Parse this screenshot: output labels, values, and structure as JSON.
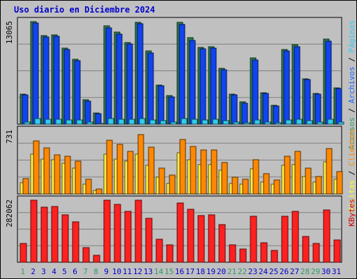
{
  "title": "Uso diario en Diciembre 2024",
  "chart_data": [
    {
      "type": "bar",
      "ytick_label": "13065",
      "ylim": [
        0,
        13065
      ],
      "grid": true,
      "right_labels": [
        {
          "text": "Accesos",
          "color": "#339966"
        },
        {
          "text": " / ",
          "color": "#000000"
        },
        {
          "text": "Archivos",
          "color": "#2266ff"
        },
        {
          "text": " / ",
          "color": "#000000"
        },
        {
          "text": "Páginas",
          "color": "#33ccee"
        }
      ],
      "series": [
        {
          "name": "Accesos",
          "color": "#2e7d4f",
          "values": [
            3800,
            13065,
            11300,
            11400,
            9700,
            8300,
            3100,
            1400,
            12500,
            11700,
            10400,
            13000,
            9300,
            5000,
            3600,
            13000,
            11000,
            9800,
            9900,
            7100,
            3800,
            2800,
            8400,
            4000,
            2400,
            9500,
            10100,
            5800,
            3900,
            10800,
            4600
          ]
        },
        {
          "name": "Archivos",
          "color": "#1144ee",
          "values": [
            3700,
            12900,
            11100,
            11200,
            9500,
            8100,
            2900,
            1300,
            12300,
            11500,
            10200,
            12800,
            9100,
            4900,
            3500,
            12700,
            10700,
            9600,
            9700,
            6900,
            3700,
            2700,
            8200,
            3900,
            2300,
            9300,
            9900,
            5700,
            3800,
            10600,
            4500
          ]
        },
        {
          "name": "Páginas",
          "color": "#33ccee",
          "values": [
            300,
            700,
            600,
            600,
            500,
            500,
            300,
            100,
            700,
            600,
            600,
            700,
            500,
            400,
            300,
            700,
            600,
            500,
            600,
            400,
            300,
            200,
            500,
            300,
            200,
            500,
            600,
            400,
            300,
            600,
            300
          ]
        }
      ]
    },
    {
      "type": "bar",
      "ytick_label": "731",
      "ylim": [
        0,
        731
      ],
      "grid": true,
      "right_labels": [
        {
          "text": "Visitas",
          "color": "#ffff33"
        },
        {
          "text": " / ",
          "color": "#000000"
        },
        {
          "text": "Clientes",
          "color": "#ff8800"
        }
      ],
      "series": [
        {
          "name": "Visitas",
          "color": "#ffee44",
          "values": [
            130,
            460,
            400,
            390,
            350,
            300,
            110,
            40,
            460,
            400,
            380,
            460,
            330,
            190,
            120,
            470,
            390,
            340,
            340,
            270,
            120,
            110,
            290,
            140,
            110,
            330,
            340,
            200,
            140,
            370,
            170
          ]
        },
        {
          "name": "Clientes",
          "color": "#ff8800",
          "values": [
            180,
            610,
            530,
            450,
            430,
            380,
            170,
            60,
            620,
            570,
            490,
            680,
            540,
            300,
            220,
            630,
            550,
            510,
            510,
            360,
            190,
            170,
            390,
            230,
            160,
            430,
            490,
            300,
            200,
            520,
            260
          ]
        }
      ]
    },
    {
      "type": "bar",
      "ytick_label": "282062",
      "ylim": [
        0,
        282062
      ],
      "grid": true,
      "right_labels": [
        {
          "text": "KBytes",
          "color": "#cc0000"
        }
      ],
      "series": [
        {
          "name": "KBytes",
          "color": "#ff2020",
          "values": [
            85000,
            282062,
            250000,
            252000,
            215000,
            183000,
            68000,
            33000,
            282000,
            262000,
            230000,
            282000,
            199000,
            105000,
            78000,
            270000,
            240000,
            213000,
            217000,
            171000,
            78000,
            60000,
            210000,
            88000,
            54000,
            209000,
            230000,
            117000,
            86000,
            237000,
            101000
          ]
        }
      ]
    }
  ],
  "days": [
    {
      "label": "1",
      "weekend": true
    },
    {
      "label": "2",
      "weekend": false
    },
    {
      "label": "3",
      "weekend": false
    },
    {
      "label": "4",
      "weekend": false
    },
    {
      "label": "5",
      "weekend": false
    },
    {
      "label": "6",
      "weekend": false
    },
    {
      "label": "7",
      "weekend": true
    },
    {
      "label": "8",
      "weekend": true
    },
    {
      "label": "9",
      "weekend": false
    },
    {
      "label": "10",
      "weekend": false
    },
    {
      "label": "11",
      "weekend": false
    },
    {
      "label": "12",
      "weekend": false
    },
    {
      "label": "13",
      "weekend": false
    },
    {
      "label": "14",
      "weekend": true
    },
    {
      "label": "15",
      "weekend": true
    },
    {
      "label": "16",
      "weekend": false
    },
    {
      "label": "17",
      "weekend": false
    },
    {
      "label": "18",
      "weekend": false
    },
    {
      "label": "19",
      "weekend": false
    },
    {
      "label": "20",
      "weekend": false
    },
    {
      "label": "21",
      "weekend": true
    },
    {
      "label": "22",
      "weekend": true
    },
    {
      "label": "23",
      "weekend": false
    },
    {
      "label": "24",
      "weekend": false
    },
    {
      "label": "25",
      "weekend": false
    },
    {
      "label": "26",
      "weekend": false
    },
    {
      "label": "27",
      "weekend": false
    },
    {
      "label": "28",
      "weekend": true
    },
    {
      "label": "29",
      "weekend": true
    },
    {
      "label": "30",
      "weekend": false
    },
    {
      "label": "31",
      "weekend": false
    }
  ],
  "colors": {
    "background": "#c0c0c0",
    "title": "#0000cc",
    "weekday_label": "#0000cc",
    "weekend_label": "#339966",
    "grid": "#808080"
  }
}
